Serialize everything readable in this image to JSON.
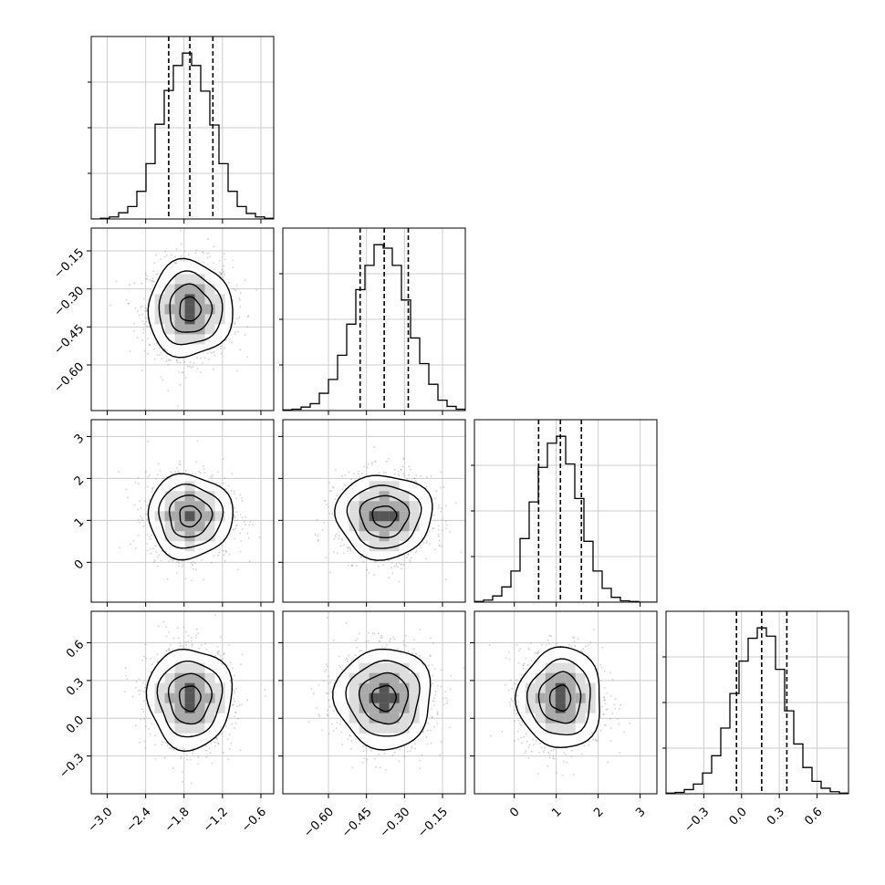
{
  "chart_data": {
    "type": "corner",
    "parameters": [
      {
        "range": [
          -3.25,
          -0.4
        ],
        "ticks": [
          -3.0,
          -2.4,
          -1.8,
          -1.2,
          -0.6
        ],
        "tick_labels": [
          "−3.0",
          "−2.4",
          "−1.8",
          "−1.2",
          "−0.6"
        ],
        "quantiles": [
          -2.04,
          -1.71,
          -1.35
        ]
      },
      {
        "range": [
          -0.78,
          -0.06
        ],
        "ticks": [
          -0.6,
          -0.45,
          -0.3,
          -0.15
        ],
        "tick_labels": [
          "−0.60",
          "−0.45",
          "−0.30",
          "−0.15"
        ],
        "quantiles": [
          -0.475,
          -0.38,
          -0.285
        ]
      },
      {
        "range": [
          -0.95,
          3.4
        ],
        "ticks": [
          0,
          1,
          2,
          3
        ],
        "tick_labels": [
          "0",
          "1",
          "2",
          "3"
        ],
        "quantiles": [
          0.58,
          1.1,
          1.6
        ]
      },
      {
        "range": [
          -0.6,
          0.85
        ],
        "ticks": [
          -0.3,
          0.0,
          0.3,
          0.6
        ],
        "tick_labels": [
          "−0.3",
          "0.0",
          "0.3",
          "0.6"
        ],
        "quantiles": [
          -0.04,
          0.16,
          0.36
        ]
      }
    ],
    "histograms": [
      {
        "edges": [
          -3.25,
          -3.1075,
          -2.965,
          -2.8225,
          -2.68,
          -2.5375,
          -2.395,
          -2.2525,
          -2.11,
          -1.9675,
          -1.825,
          -1.6825,
          -1.54,
          -1.3975,
          -1.255,
          -1.1125,
          -0.97,
          -0.8275,
          -0.685,
          -0.5425,
          -0.4
        ],
        "counts": [
          0,
          1,
          3,
          9,
          18,
          40,
          80,
          137,
          186,
          222,
          240,
          222,
          185,
          136,
          80,
          40,
          18,
          8,
          3,
          1
        ]
      },
      {
        "edges": [
          -0.78,
          -0.744,
          -0.708,
          -0.672,
          -0.636,
          -0.6,
          -0.564,
          -0.528,
          -0.492,
          -0.456,
          -0.42,
          -0.384,
          -0.348,
          -0.312,
          -0.276,
          -0.24,
          -0.204,
          -0.168,
          -0.132,
          -0.096,
          -0.06
        ],
        "counts": [
          1,
          2,
          5,
          10,
          25,
          45,
          80,
          125,
          175,
          210,
          240,
          235,
          210,
          160,
          105,
          68,
          38,
          15,
          6,
          2
        ]
      },
      {
        "edges": [
          -0.95,
          -0.7325,
          -0.515,
          -0.2975,
          -0.08,
          0.1375,
          0.355,
          0.5725,
          0.79,
          1.0075,
          1.225,
          1.4425,
          1.66,
          1.8775,
          2.095,
          2.3125,
          2.53,
          2.7475,
          2.965,
          3.1825,
          3.4
        ],
        "counts": [
          1,
          3,
          9,
          22,
          45,
          92,
          145,
          195,
          230,
          240,
          200,
          150,
          88,
          45,
          20,
          7,
          2,
          1,
          0,
          0
        ]
      },
      {
        "edges": [
          -0.6,
          -0.5275,
          -0.455,
          -0.3825,
          -0.31,
          -0.2375,
          -0.165,
          -0.0925,
          -0.02,
          0.0525,
          0.125,
          0.1975,
          0.27,
          0.3425,
          0.415,
          0.4875,
          0.56,
          0.6325,
          0.705,
          0.7775,
          0.85
        ],
        "counts": [
          1,
          2,
          6,
          14,
          30,
          55,
          95,
          145,
          192,
          225,
          240,
          228,
          180,
          120,
          72,
          38,
          18,
          8,
          3,
          1
        ]
      }
    ],
    "centers": [
      -1.71,
      -0.38,
      1.1,
      0.16
    ],
    "sigmas": [
      0.33,
      0.095,
      0.5,
      0.2
    ],
    "correlations": [
      [
        1,
        0,
        0,
        0
      ],
      [
        0,
        1,
        0,
        0
      ],
      [
        0,
        0,
        1,
        0
      ],
      [
        0,
        0,
        0,
        1
      ]
    ],
    "contour_levels_sigma": [
      0.5,
      1.0,
      1.5,
      2.0
    ],
    "grid": true,
    "colors": {
      "points": "#7f7f7f",
      "lines": "#000000",
      "grid": "#cccccc"
    }
  }
}
